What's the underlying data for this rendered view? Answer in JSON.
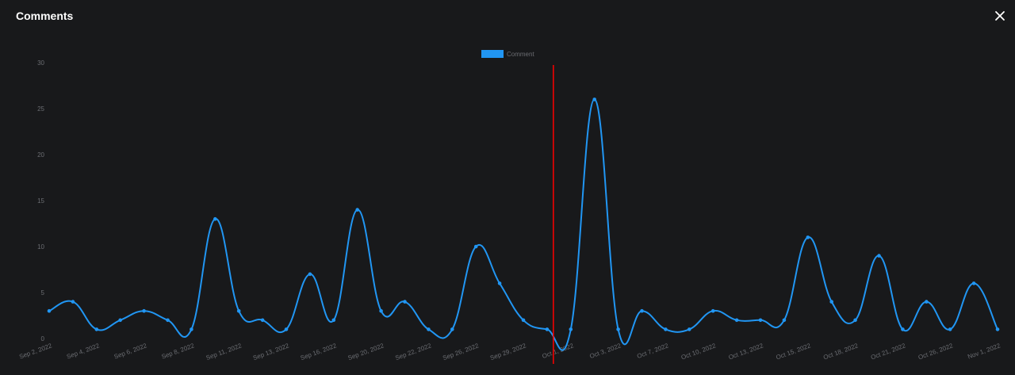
{
  "window": {
    "title": "Comments",
    "close_icon": "close-icon"
  },
  "colors": {
    "background": "#18191b",
    "series": "#2196f3",
    "marker_line": "#ff0000",
    "tick_text": "#6b6d72"
  },
  "chart_data": {
    "type": "line",
    "title": "",
    "xlabel": "",
    "ylabel": "",
    "ylim": [
      0,
      30
    ],
    "yticks": [
      0,
      5,
      10,
      15,
      20,
      25,
      30
    ],
    "legend_position": "top-center",
    "grid": false,
    "categories": [
      "Sep 2, 2022",
      "Sep 3, 2022",
      "Sep 4, 2022",
      "Sep 5, 2022",
      "Sep 6, 2022",
      "Sep 7, 2022",
      "Sep 8, 2022",
      "Sep 9, 2022",
      "Sep 11, 2022",
      "Sep 12, 2022",
      "Sep 13, 2022",
      "Sep 14, 2022",
      "Sep 16, 2022",
      "Sep 17, 2022",
      "Sep 20, 2022",
      "Sep 21, 2022",
      "Sep 22, 2022",
      "Sep 23, 2022",
      "Sep 26, 2022",
      "Sep 27, 2022",
      "Sep 29, 2022",
      "Sep 30, 2022",
      "Oct 1, 2022",
      "Oct 2, 2022",
      "Oct 3, 2022",
      "Oct 5, 2022",
      "Oct 7, 2022",
      "Oct 9, 2022",
      "Oct 10, 2022",
      "Oct 12, 2022",
      "Oct 13, 2022",
      "Oct 14, 2022",
      "Oct 15, 2022",
      "Oct 17, 2022",
      "Oct 18, 2022",
      "Oct 19, 2022",
      "Oct 21, 2022",
      "Oct 24, 2022",
      "Oct 26, 2022",
      "Oct 27, 2022",
      "Nov 1, 2022"
    ],
    "tick_labels": [
      "Sep 2, 2022",
      "Sep 4, 2022",
      "Sep 6, 2022",
      "Sep 8, 2022",
      "Sep 11, 2022",
      "Sep 13, 2022",
      "Sep 16, 2022",
      "Sep 20, 2022",
      "Sep 22, 2022",
      "Sep 26, 2022",
      "Sep 29, 2022",
      "Oct 1, 2022",
      "Oct 3, 2022",
      "Oct 7, 2022",
      "Oct 10, 2022",
      "Oct 13, 2022",
      "Oct 15, 2022",
      "Oct 18, 2022",
      "Oct 21, 2022",
      "Oct 26, 2022",
      "Nov 1, 2022"
    ],
    "series": [
      {
        "name": "Comment",
        "values": [
          3,
          4,
          1,
          2,
          3,
          2,
          1,
          13,
          3,
          2,
          1,
          7,
          2,
          14,
          3,
          4,
          1,
          1,
          10,
          6,
          2,
          1,
          1,
          26,
          1,
          3,
          1,
          1,
          3,
          2,
          2,
          2,
          11,
          4,
          2,
          9,
          1,
          4,
          1,
          6,
          1
        ]
      }
    ],
    "marker_line_after_category": "Sep 30, 2022"
  }
}
